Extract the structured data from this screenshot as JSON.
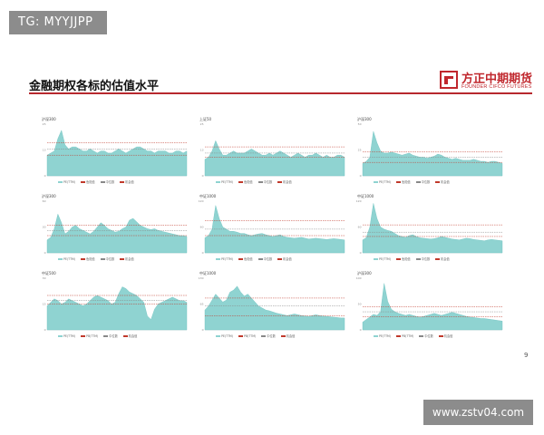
{
  "badge": {
    "text": "TG: MYYJJPP"
  },
  "header": {
    "title": "金融期权各标的估值水平",
    "logo_cn": "方正中期期货",
    "logo_en": "FOUNDER CIFCO FUTURES"
  },
  "page_number": "9",
  "watermark": "www.zstv04.com",
  "colors": {
    "area": "#8fd3d1",
    "band_red": "#c0392b",
    "band_gray": "#888888",
    "accent": "#b7282e"
  },
  "chart_data": [
    {
      "type": "area",
      "title": "沪深300",
      "ylim": [
        0,
        25
      ],
      "legend": [
        "PE(TTM)",
        "危险值",
        "中位数",
        "机会值"
      ],
      "bands": [
        16,
        13,
        10
      ],
      "values": [
        10,
        11,
        12,
        18,
        22,
        15,
        13,
        14,
        14,
        13,
        12,
        12,
        13,
        12,
        11,
        12,
        12,
        11,
        11,
        12,
        13,
        12,
        11,
        12,
        13,
        14,
        14,
        13,
        12,
        12,
        11,
        12,
        12,
        12,
        11,
        11,
        12,
        12,
        11,
        12
      ]
    },
    {
      "type": "area",
      "title": "上证50",
      "ylim": [
        0,
        25
      ],
      "legend": [
        "PE(TTM)",
        "危险值",
        "中位数",
        "机会值"
      ],
      "bands": [
        14,
        11,
        9
      ],
      "values": [
        8,
        9,
        12,
        17,
        13,
        10,
        10,
        11,
        12,
        11,
        11,
        11,
        12,
        13,
        12,
        11,
        10,
        10,
        11,
        10,
        11,
        12,
        11,
        10,
        9,
        10,
        11,
        10,
        9,
        10,
        10,
        11,
        10,
        9,
        10,
        9,
        9,
        10,
        10,
        9
      ]
    },
    {
      "type": "area",
      "title": "沪深300",
      "ylim": [
        0,
        50
      ],
      "legend": [
        "PE(TTM)",
        "危险值",
        "中位数",
        "机会值"
      ],
      "bands": [
        23,
        18,
        13
      ],
      "values": [
        12,
        14,
        18,
        43,
        32,
        24,
        22,
        22,
        23,
        22,
        21,
        20,
        21,
        22,
        20,
        19,
        18,
        18,
        17,
        18,
        19,
        21,
        20,
        18,
        17,
        16,
        17,
        16,
        15,
        15,
        15,
        16,
        15,
        14,
        14,
        13,
        14,
        14,
        13,
        12
      ]
    },
    {
      "type": "area",
      "title": "沪深300",
      "ylim": [
        0,
        60
      ],
      "legend": [
        "PE(TTM)",
        "危险值",
        "中位数",
        "机会值"
      ],
      "bands": [
        32,
        26,
        20
      ],
      "values": [
        15,
        18,
        28,
        45,
        35,
        22,
        25,
        30,
        32,
        28,
        26,
        24,
        22,
        25,
        30,
        35,
        32,
        28,
        26,
        24,
        25,
        28,
        30,
        38,
        40,
        36,
        32,
        30,
        28,
        27,
        28,
        26,
        25,
        24,
        23,
        22,
        21,
        20,
        20,
        19
      ]
    },
    {
      "type": "area",
      "title": "中证1000",
      "ylim": [
        0,
        120
      ],
      "legend": [
        "PE(TTM)",
        "危险值",
        "中位数",
        "机会值"
      ],
      "bands": [
        75,
        55,
        40
      ],
      "values": [
        35,
        40,
        55,
        110,
        80,
        60,
        55,
        50,
        50,
        48,
        45,
        45,
        42,
        40,
        42,
        44,
        45,
        42,
        40,
        38,
        40,
        42,
        38,
        36,
        35,
        34,
        35,
        36,
        34,
        32,
        33,
        34,
        33,
        32,
        31,
        32,
        33,
        32,
        31,
        30
      ]
    },
    {
      "type": "area",
      "title": "中证1000",
      "ylim": [
        0,
        120
      ],
      "legend": [
        "PE(TTM)",
        "危险值",
        "中位数",
        "机会值"
      ],
      "bands": [
        65,
        48,
        38
      ],
      "values": [
        30,
        35,
        60,
        115,
        80,
        60,
        55,
        52,
        50,
        45,
        40,
        38,
        36,
        40,
        42,
        38,
        35,
        34,
        33,
        32,
        33,
        35,
        38,
        36,
        34,
        32,
        31,
        30,
        32,
        34,
        33,
        31,
        30,
        29,
        28,
        30,
        31,
        30,
        29,
        28
      ]
    },
    {
      "type": "area",
      "title": "中证500",
      "ylim": [
        0,
        30
      ],
      "legend": [
        "PE(TTM)",
        "PB(TTM)",
        "中位数",
        "机会值"
      ],
      "bands": [
        20,
        17,
        15
      ],
      "values": [
        14,
        16,
        18,
        17,
        15,
        16,
        18,
        17,
        16,
        15,
        14,
        15,
        17,
        19,
        20,
        19,
        18,
        17,
        15,
        16,
        21,
        25,
        24,
        22,
        21,
        20,
        18,
        16,
        8,
        6,
        12,
        15,
        16,
        17,
        18,
        19,
        18,
        17,
        17,
        16
      ]
    },
    {
      "type": "area",
      "title": "中证1000",
      "ylim": [
        0,
        130
      ],
      "legend": [
        "PE(TTM)",
        "PB(TTM)",
        "中位数",
        "机会值"
      ],
      "bands": [
        80,
        60,
        35
      ],
      "values": [
        50,
        60,
        75,
        90,
        80,
        70,
        75,
        95,
        100,
        110,
        95,
        85,
        90,
        80,
        70,
        60,
        55,
        50,
        48,
        45,
        42,
        40,
        38,
        36,
        38,
        40,
        38,
        36,
        35,
        34,
        36,
        38,
        36,
        35,
        34,
        33,
        32,
        31,
        30,
        30
      ]
    },
    {
      "type": "area",
      "title": "沪深300",
      "ylim": [
        0,
        100
      ],
      "legend": [
        "PE(TTM)",
        "PB(TTM)",
        "中位数",
        "机会值"
      ],
      "bands": [
        45,
        35,
        25
      ],
      "values": [
        15,
        20,
        25,
        30,
        28,
        35,
        90,
        55,
        40,
        35,
        32,
        30,
        28,
        30,
        28,
        26,
        25,
        26,
        28,
        30,
        32,
        30,
        28,
        30,
        32,
        34,
        32,
        30,
        28,
        26,
        25,
        24,
        23,
        22,
        22,
        21,
        20,
        19,
        18,
        17
      ]
    }
  ]
}
